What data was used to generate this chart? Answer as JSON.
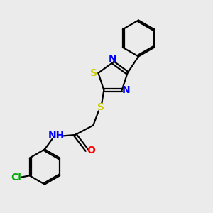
{
  "bg_color": "#ebebeb",
  "line_color": "#000000",
  "S_color": "#cccc00",
  "N_color": "#0000ff",
  "O_color": "#ff0000",
  "Cl_color": "#00aa00",
  "line_width": 1.6,
  "font_size": 10,
  "fig_size": [
    3.0,
    3.0
  ],
  "dpi": 100,
  "xlim": [
    0,
    10
  ],
  "ylim": [
    0,
    10
  ]
}
